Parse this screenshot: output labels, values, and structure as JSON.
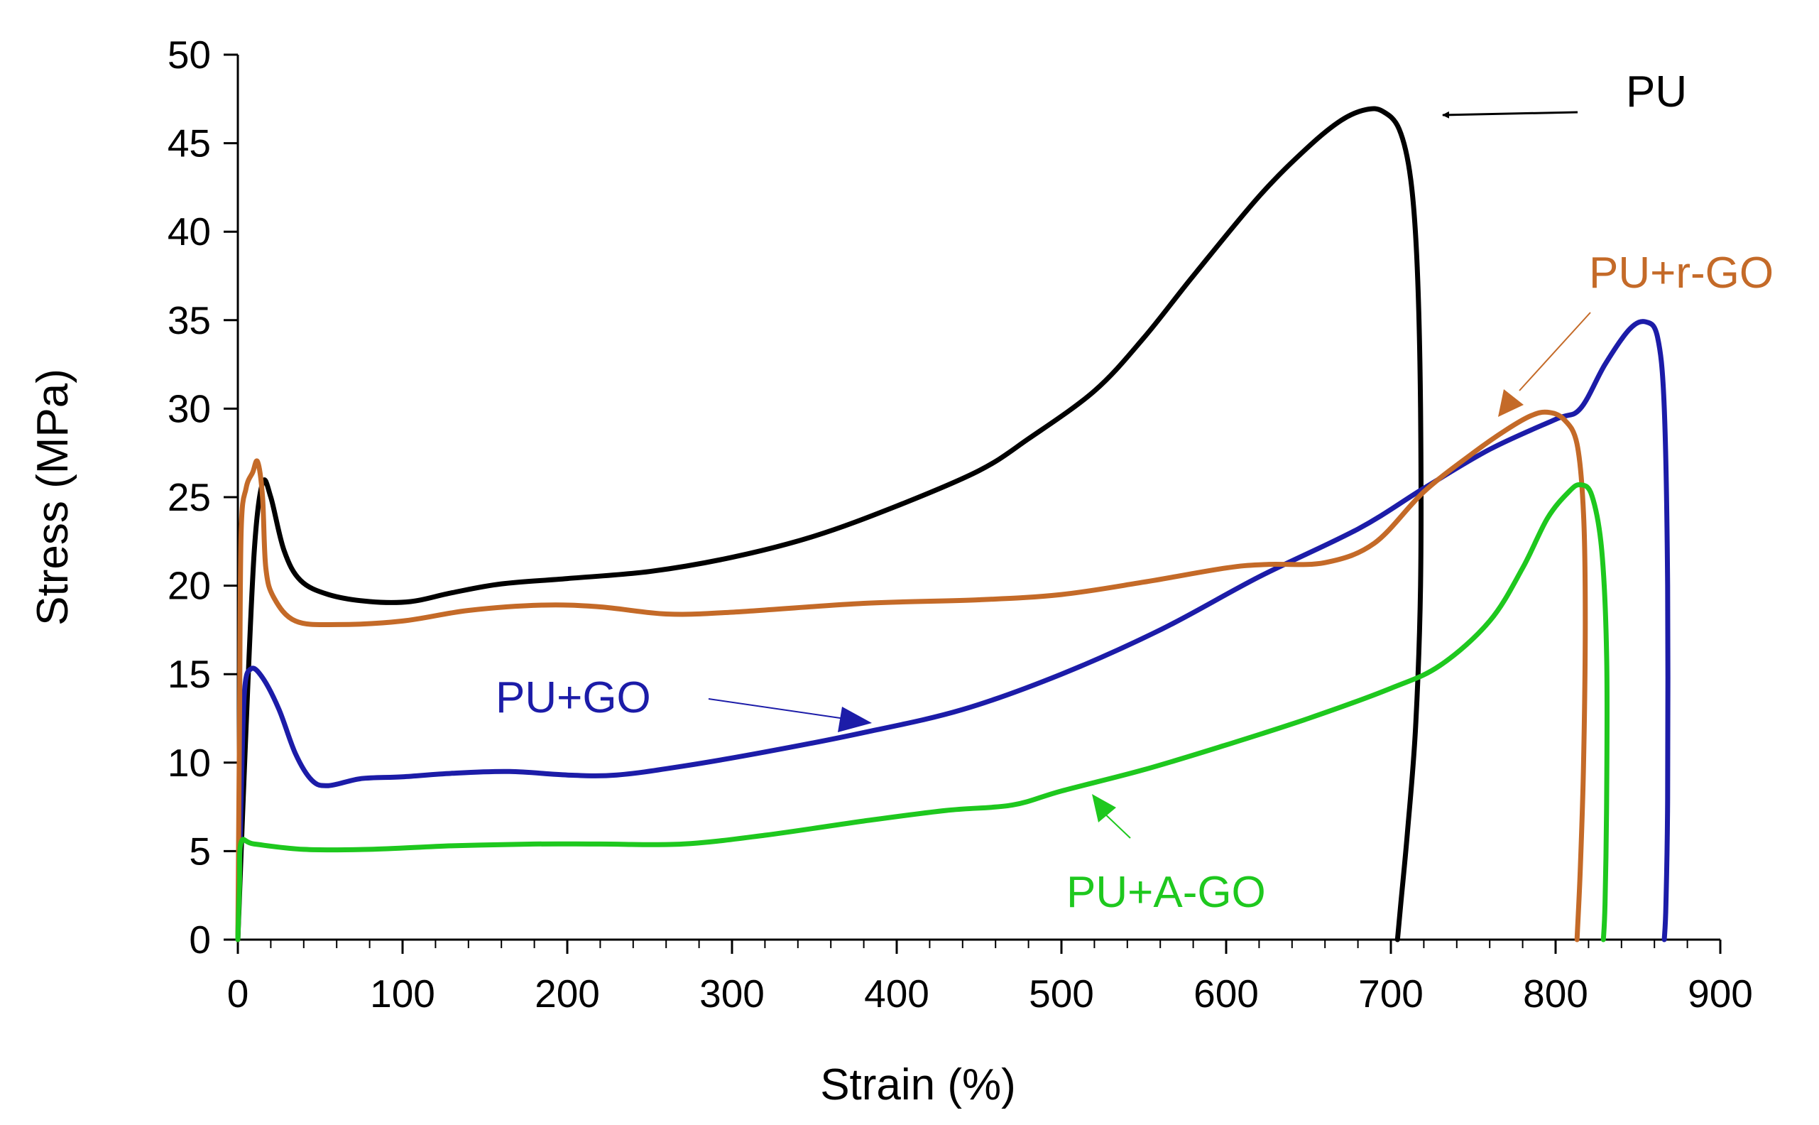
{
  "chart_data": {
    "type": "line",
    "title": "",
    "xlabel": "Strain (%)",
    "ylabel": "Stress (MPa)",
    "xlim": [
      0,
      900
    ],
    "ylim": [
      0,
      50
    ],
    "xticks": [
      0,
      100,
      200,
      300,
      400,
      500,
      600,
      700,
      800,
      900
    ],
    "yticks": [
      0,
      5,
      10,
      15,
      20,
      25,
      30,
      35,
      40,
      45,
      50
    ],
    "grid": false,
    "legend": "none",
    "series": [
      {
        "name": "PU",
        "color": "#000000",
        "points": [
          [
            0,
            0
          ],
          [
            5,
            12
          ],
          [
            10,
            22
          ],
          [
            15,
            25.8
          ],
          [
            20,
            25
          ],
          [
            28,
            22
          ],
          [
            38,
            20.3
          ],
          [
            55,
            19.5
          ],
          [
            80,
            19.1
          ],
          [
            105,
            19.1
          ],
          [
            130,
            19.6
          ],
          [
            160,
            20.1
          ],
          [
            200,
            20.4
          ],
          [
            250,
            20.8
          ],
          [
            300,
            21.6
          ],
          [
            350,
            22.8
          ],
          [
            400,
            24.5
          ],
          [
            450,
            26.5
          ],
          [
            480,
            28.3
          ],
          [
            520,
            31
          ],
          [
            550,
            34
          ],
          [
            580,
            37.5
          ],
          [
            620,
            42
          ],
          [
            650,
            44.8
          ],
          [
            670,
            46.3
          ],
          [
            685,
            46.9
          ],
          [
            695,
            46.8
          ],
          [
            705,
            45.8
          ],
          [
            712,
            43
          ],
          [
            716,
            38
          ],
          [
            718,
            30
          ],
          [
            718,
            20
          ],
          [
            715,
            12
          ],
          [
            710,
            6
          ],
          [
            706,
            2
          ],
          [
            704,
            0
          ]
        ]
      },
      {
        "name": "PU+GO",
        "color": "#1c1ca8",
        "points": [
          [
            0,
            0
          ],
          [
            2,
            8
          ],
          [
            4,
            14
          ],
          [
            8,
            15.3
          ],
          [
            15,
            14.8
          ],
          [
            25,
            13
          ],
          [
            35,
            10.5
          ],
          [
            45,
            9
          ],
          [
            55,
            8.7
          ],
          [
            75,
            9.1
          ],
          [
            100,
            9.2
          ],
          [
            130,
            9.4
          ],
          [
            165,
            9.5
          ],
          [
            200,
            9.3
          ],
          [
            230,
            9.3
          ],
          [
            270,
            9.8
          ],
          [
            320,
            10.6
          ],
          [
            380,
            11.7
          ],
          [
            440,
            13
          ],
          [
            500,
            15
          ],
          [
            560,
            17.5
          ],
          [
            620,
            20.5
          ],
          [
            680,
            23.2
          ],
          [
            720,
            25.5
          ],
          [
            760,
            27.7
          ],
          [
            800,
            29.4
          ],
          [
            815,
            30
          ],
          [
            830,
            32.5
          ],
          [
            845,
            34.5
          ],
          [
            855,
            34.9
          ],
          [
            862,
            34
          ],
          [
            866,
            30
          ],
          [
            868,
            20
          ],
          [
            868,
            8
          ],
          [
            867,
            2
          ],
          [
            866,
            0
          ]
        ]
      },
      {
        "name": "PU+r-GO",
        "color": "#c46a28",
        "points": [
          [
            0,
            0
          ],
          [
            1,
            12
          ],
          [
            2,
            23
          ],
          [
            5,
            25.5
          ],
          [
            9,
            26.4
          ],
          [
            12,
            27
          ],
          [
            15,
            25
          ],
          [
            17,
            21
          ],
          [
            22,
            19.3
          ],
          [
            35,
            18
          ],
          [
            60,
            17.8
          ],
          [
            100,
            18
          ],
          [
            140,
            18.6
          ],
          [
            185,
            18.9
          ],
          [
            220,
            18.8
          ],
          [
            260,
            18.4
          ],
          [
            300,
            18.5
          ],
          [
            380,
            19
          ],
          [
            450,
            19.2
          ],
          [
            500,
            19.5
          ],
          [
            550,
            20.2
          ],
          [
            600,
            21
          ],
          [
            625,
            21.2
          ],
          [
            660,
            21.3
          ],
          [
            690,
            22.4
          ],
          [
            720,
            25.3
          ],
          [
            750,
            27.5
          ],
          [
            770,
            28.8
          ],
          [
            785,
            29.6
          ],
          [
            795,
            29.8
          ],
          [
            805,
            29.4
          ],
          [
            813,
            28
          ],
          [
            817,
            24
          ],
          [
            818,
            18
          ],
          [
            817,
            10
          ],
          [
            815,
            4
          ],
          [
            813,
            0
          ]
        ]
      },
      {
        "name": "PU+A-GO",
        "color": "#1ec81e",
        "points": [
          [
            0,
            0
          ],
          [
            1,
            3
          ],
          [
            2,
            5.5
          ],
          [
            10,
            5.4
          ],
          [
            40,
            5.1
          ],
          [
            80,
            5.1
          ],
          [
            130,
            5.3
          ],
          [
            180,
            5.4
          ],
          [
            220,
            5.4
          ],
          [
            270,
            5.4
          ],
          [
            320,
            5.9
          ],
          [
            380,
            6.7
          ],
          [
            430,
            7.3
          ],
          [
            470,
            7.6
          ],
          [
            500,
            8.4
          ],
          [
            550,
            9.6
          ],
          [
            600,
            11
          ],
          [
            650,
            12.5
          ],
          [
            700,
            14.2
          ],
          [
            730,
            15.5
          ],
          [
            760,
            18
          ],
          [
            780,
            21
          ],
          [
            795,
            23.8
          ],
          [
            808,
            25.3
          ],
          [
            815,
            25.7
          ],
          [
            822,
            25.1
          ],
          [
            828,
            22
          ],
          [
            831,
            16
          ],
          [
            831,
            8
          ],
          [
            830,
            2
          ],
          [
            829,
            0
          ]
        ]
      }
    ],
    "annotations": [
      {
        "text": "PU",
        "color": "#000000"
      },
      {
        "text": "PU+r-GO",
        "color": "#c46a28"
      },
      {
        "text": "PU+GO",
        "color": "#1c1ca8"
      },
      {
        "text": "PU+A-GO",
        "color": "#1ec81e"
      }
    ]
  }
}
